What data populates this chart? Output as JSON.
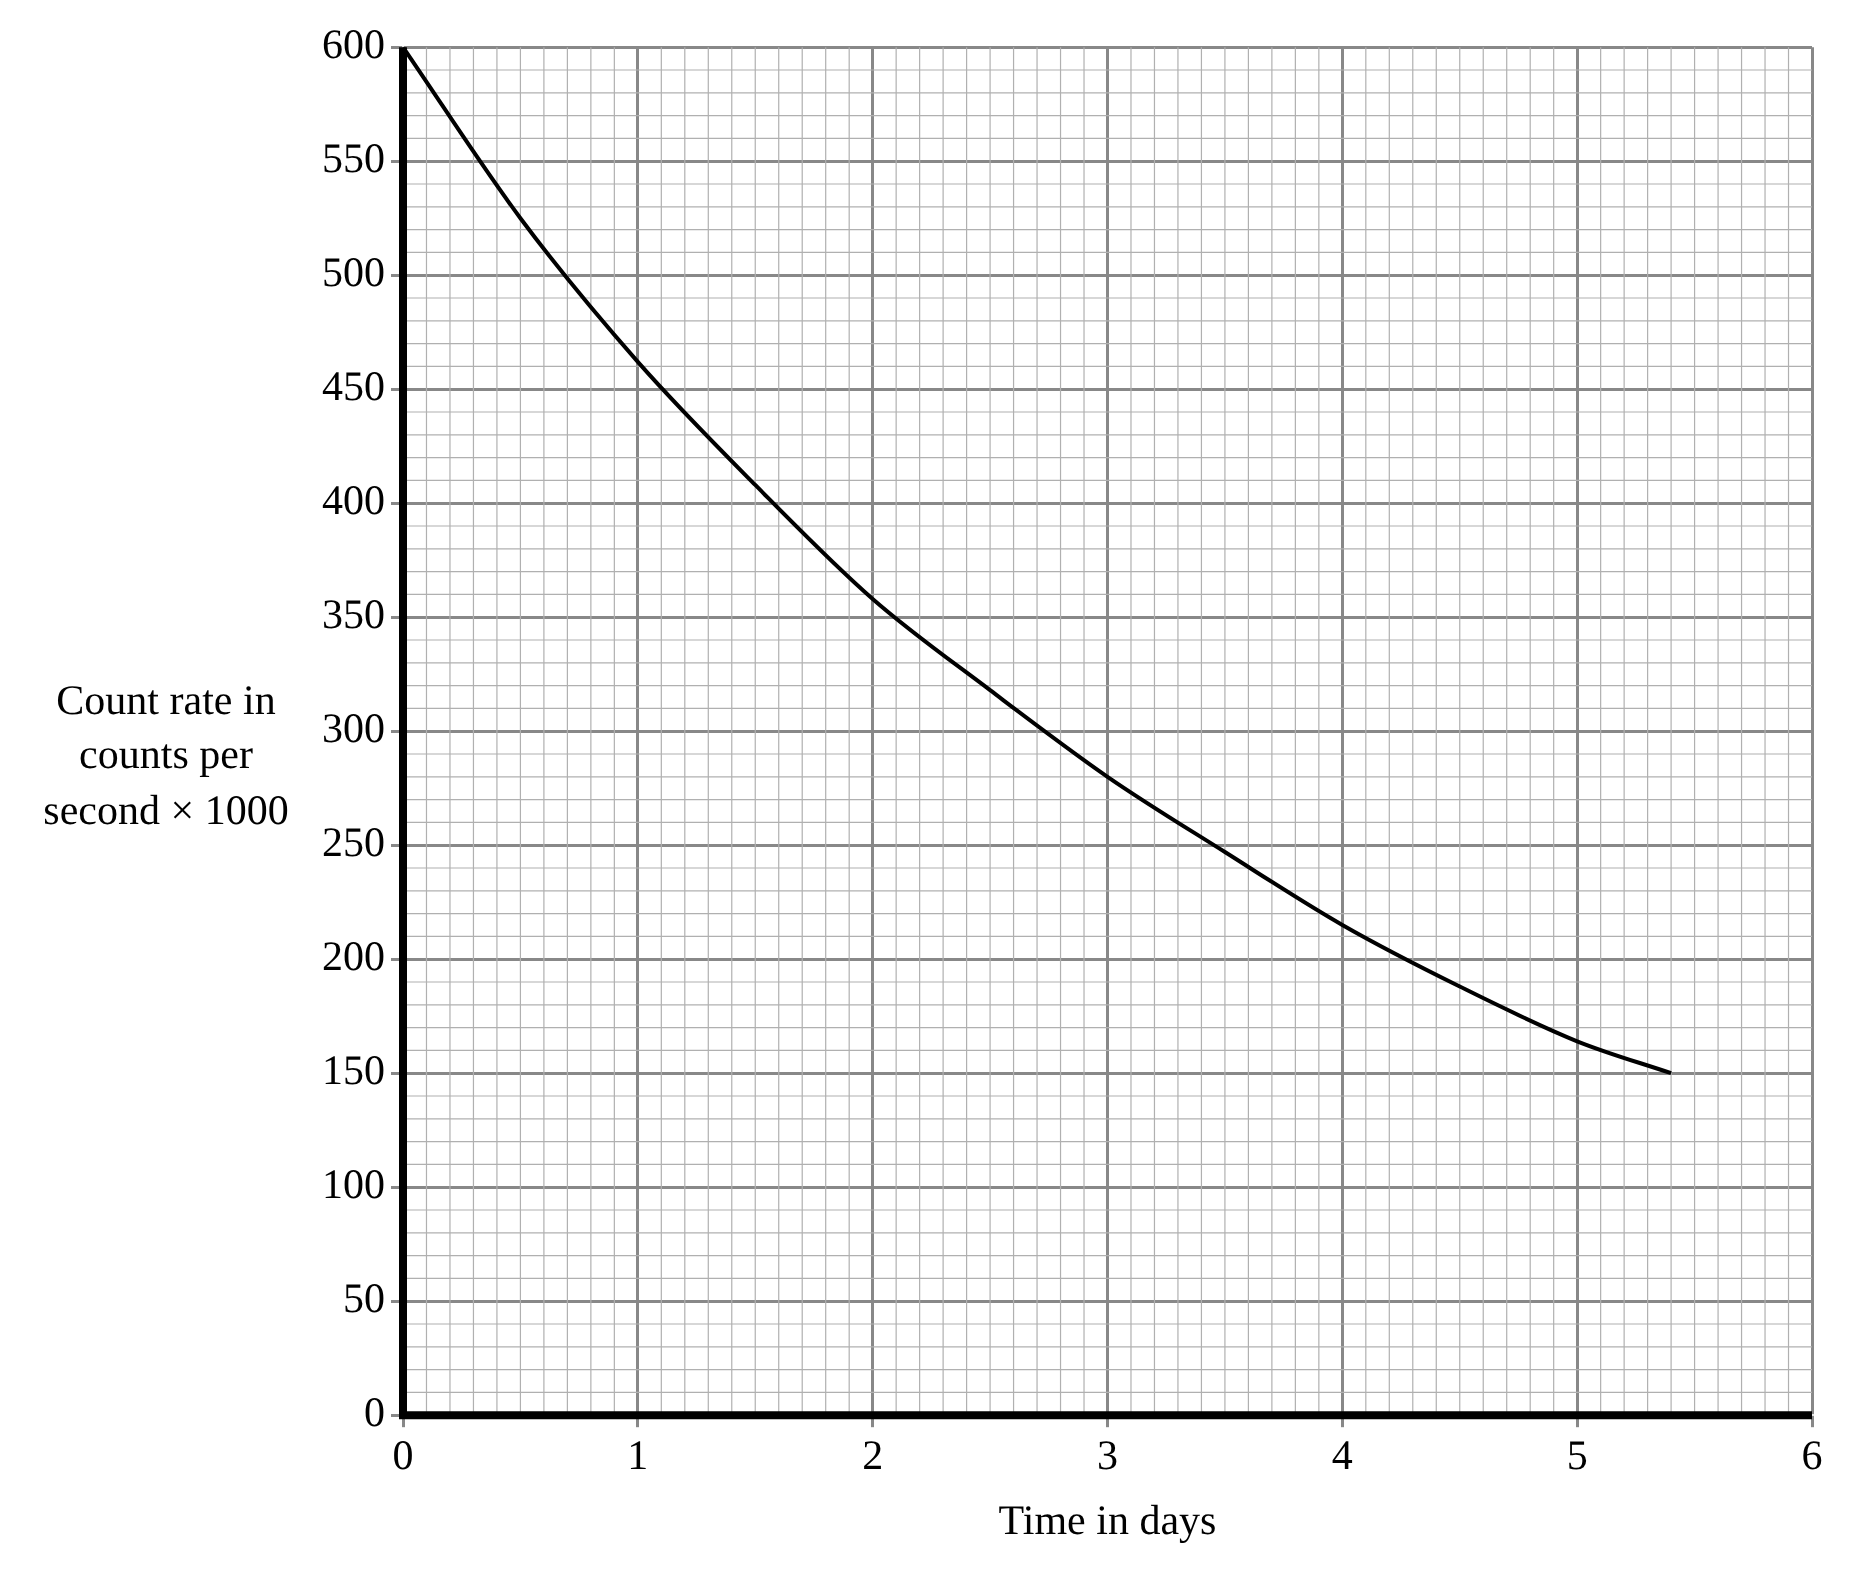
{
  "chart_data": {
    "type": "line",
    "xlabel": "Time in days",
    "ylabel": "Count rate in counts per second × 1000",
    "x": [
      0,
      0.5,
      1,
      1.5,
      2,
      2.5,
      3,
      3.5,
      4,
      4.5,
      5,
      5.4
    ],
    "series": [
      {
        "color": "#000000",
        "values": [
          600,
          525,
          462,
          408,
          358,
          318,
          280,
          247,
          215,
          188,
          164,
          150
        ]
      }
    ],
    "xlim": [
      0,
      6
    ],
    "xticks": [
      0,
      1,
      2,
      3,
      4,
      5,
      6
    ],
    "ylim": [
      0,
      600
    ],
    "yticks": [
      0,
      50,
      100,
      150,
      200,
      250,
      300,
      350,
      400,
      450,
      500,
      550,
      600
    ],
    "grid": true,
    "marker": "none",
    "line_style": "solid",
    "legend": false
  }
}
